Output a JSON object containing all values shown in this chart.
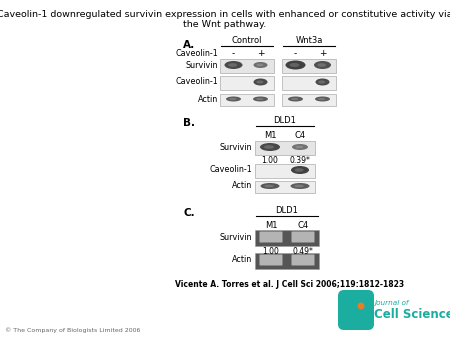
{
  "title_line1": "Caveolin-1 downregulated survivin expression in cells with enhanced or constitutive activity via",
  "title_line2": "the Wnt pathway.",
  "citation": "Vicente A. Torres et al. J Cell Sci 2006;119:1812-1823",
  "copyright": "© The Company of Biologists Limited 2006",
  "bg_color": "#ffffff",
  "panelA_label": "A.",
  "panelA_ctrl_label": "Control",
  "panelA_wnt_label": "Wnt3a",
  "panelA_col_labels": [
    "-",
    "+",
    "-",
    "+"
  ],
  "panelA_row0_label": "Caveolin-1",
  "panelA_row1_label": "Survivin",
  "panelA_row2_label": "Caveolin-1",
  "panelA_row3_label": "Actin",
  "panelB_label": "B.",
  "panelB_group": "DLD1",
  "panelB_cols": [
    "M1",
    "C4"
  ],
  "panelB_survivin_label": "Survivin",
  "panelB_values": [
    "1.00",
    "0.39*"
  ],
  "panelB_cav_label": "Caveolin-1",
  "panelB_actin_label": "Actin",
  "panelC_label": "C.",
  "panelC_group": "DLD1",
  "panelC_cols": [
    "M1",
    "C4"
  ],
  "panelC_survivin_label": "Survivin",
  "panelC_values": [
    "1.00",
    "0.49*"
  ],
  "panelC_actin_label": "Actin",
  "logo_text1": "Journal of",
  "logo_text2": "Cell Science",
  "logo_color": "#1a9b8e"
}
